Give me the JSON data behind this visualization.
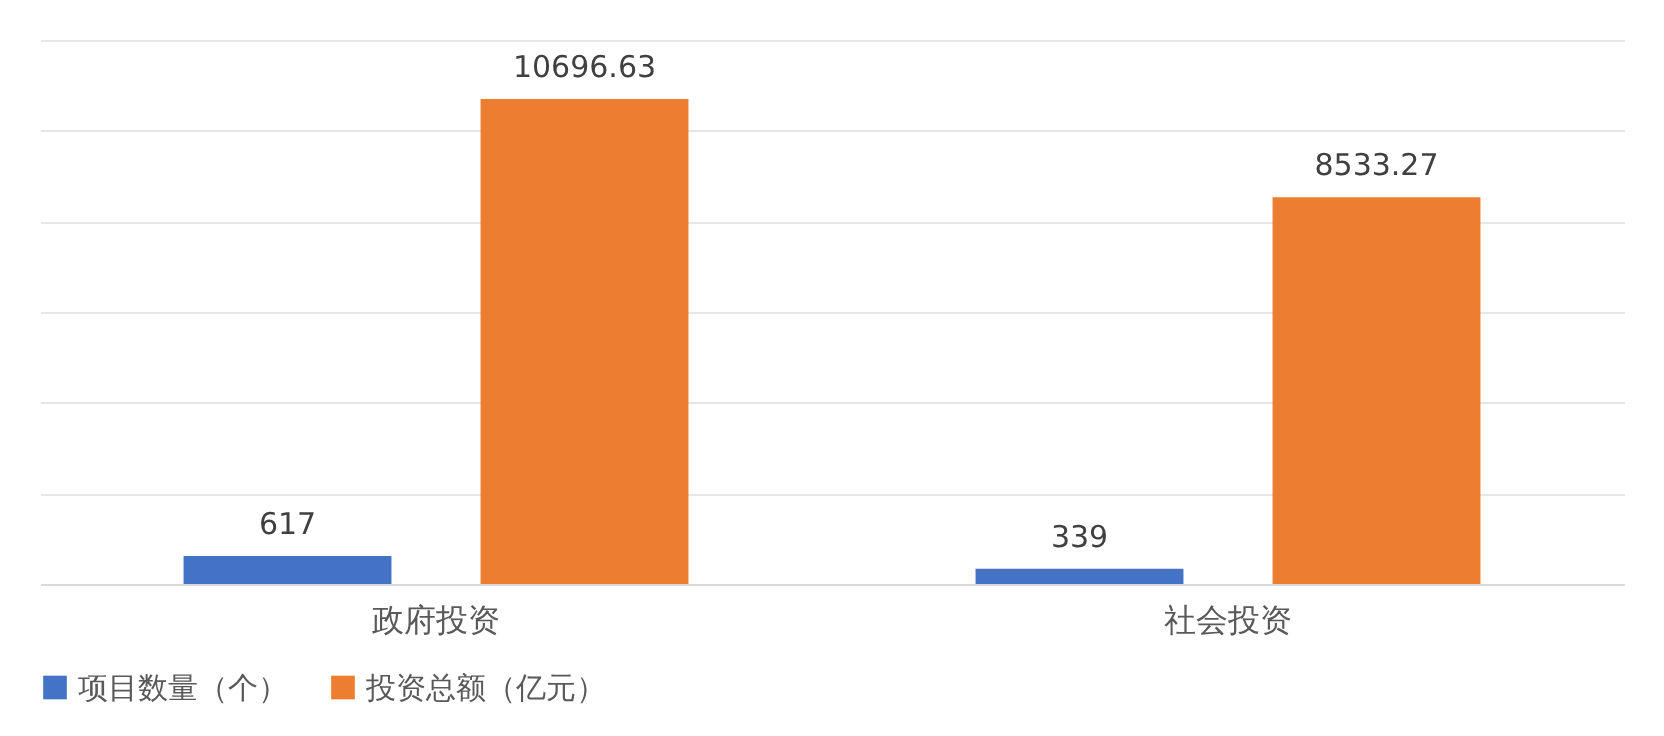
{
  "chart_data": {
    "type": "bar",
    "categories": [
      "政府投资",
      "社会投资"
    ],
    "series": [
      {
        "name": "项目数量（个）",
        "color": "#4472c4",
        "values": [
          617,
          339
        ]
      },
      {
        "name": "投资总额（亿元）",
        "color": "#ed7d31",
        "values": [
          10696.63,
          8533.27
        ]
      }
    ],
    "ylim": [
      0,
      12000
    ],
    "yticks": [
      0,
      2000,
      4000,
      6000,
      8000,
      10000,
      12000
    ],
    "grid": "y",
    "tick_labels": "x",
    "legend": "bottom",
    "data_labels": true
  }
}
